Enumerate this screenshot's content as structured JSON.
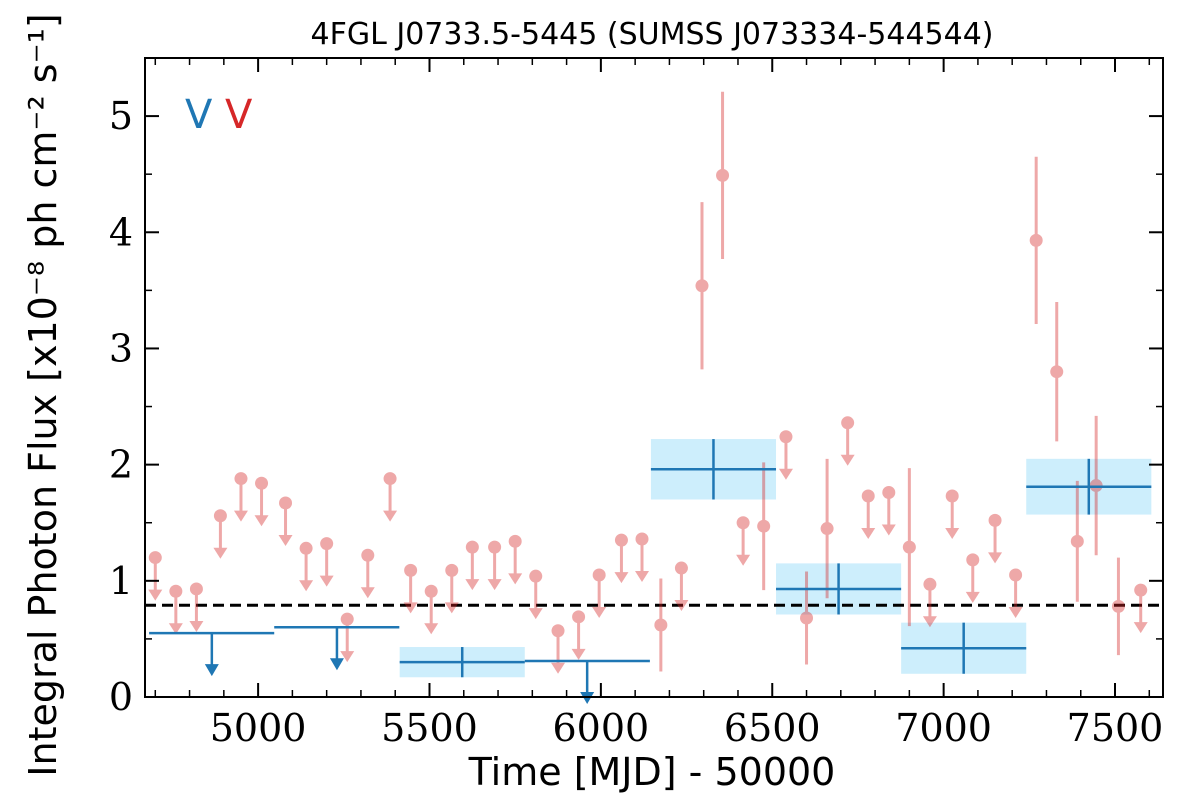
{
  "chart_data": {
    "type": "scatter",
    "title": "4FGL J0733.5-5445 (SUMSS J073334-544544)",
    "xlabel": "Time [MJD] - 50000",
    "ylabel": "Integral Photon Flux [x10⁻⁸ ph cm⁻² s⁻¹]",
    "xlim": [
      4670,
      7640
    ],
    "ylim": [
      0,
      5.5
    ],
    "xticks": [
      5000,
      5500,
      6000,
      6500,
      7000,
      7500
    ],
    "yticks": [
      0,
      1,
      2,
      3,
      4,
      5
    ],
    "grid": false,
    "legend": {
      "position": "top-left",
      "entries": [
        {
          "label": "V",
          "color": "#1f77b4"
        },
        {
          "label": "V",
          "color": "#d62728"
        }
      ]
    },
    "reference_line": {
      "y": 0.79,
      "style": "dashed",
      "color": "#000000"
    },
    "series": [
      {
        "color": "#1f77b4",
        "binned": [
          {
            "x0": 5413,
            "x1": 5778,
            "y": 0.3,
            "yerr": 0.13
          },
          {
            "x0": 6146,
            "x1": 6511,
            "y": 1.96,
            "yerr": 0.26
          },
          {
            "x0": 6511,
            "x1": 6876,
            "y": 0.93,
            "yerr": 0.22
          },
          {
            "x0": 6876,
            "x1": 7241,
            "y": 0.42,
            "yerr": 0.22
          },
          {
            "x0": 7241,
            "x1": 7606,
            "y": 1.81,
            "yerr": 0.24
          }
        ],
        "upper_limits": [
          {
            "x0": 4682,
            "x1": 5047,
            "y": 0.55,
            "arrow_x": 4865
          },
          {
            "x0": 5047,
            "x1": 5412,
            "y": 0.6,
            "arrow_x": 5230
          },
          {
            "x0": 5778,
            "x1": 6143,
            "y": 0.31,
            "arrow_x": 5960
          }
        ]
      },
      {
        "color": "#d62728",
        "points": [
          {
            "x": 6175,
            "y": 0.62,
            "yerr": 0.4
          },
          {
            "x": 6295,
            "y": 3.54,
            "yerr": 0.72
          },
          {
            "x": 6355,
            "y": 4.49,
            "yerr": 0.72
          },
          {
            "x": 6475,
            "y": 1.47,
            "yerr": 0.55
          },
          {
            "x": 6600,
            "y": 0.68,
            "yerr": 0.4
          },
          {
            "x": 6660,
            "y": 1.45,
            "yerr": 0.6
          },
          {
            "x": 6900,
            "y": 1.29,
            "yerr": 0.68
          },
          {
            "x": 7270,
            "y": 3.93,
            "yerr": 0.72
          },
          {
            "x": 7330,
            "y": 2.8,
            "yerr": 0.6
          },
          {
            "x": 7390,
            "y": 1.34,
            "yerr": 0.52
          },
          {
            "x": 7445,
            "y": 1.82,
            "yerr": 0.6
          },
          {
            "x": 7510,
            "y": 0.78,
            "yerr": 0.42
          }
        ],
        "upper_limits": [
          {
            "x": 4700,
            "y": 1.2
          },
          {
            "x": 4760,
            "y": 0.91
          },
          {
            "x": 4820,
            "y": 0.93
          },
          {
            "x": 4890,
            "y": 1.56
          },
          {
            "x": 4950,
            "y": 1.88
          },
          {
            "x": 5010,
            "y": 1.84
          },
          {
            "x": 5080,
            "y": 1.67
          },
          {
            "x": 5140,
            "y": 1.28
          },
          {
            "x": 5200,
            "y": 1.32
          },
          {
            "x": 5260,
            "y": 0.67
          },
          {
            "x": 5320,
            "y": 1.22
          },
          {
            "x": 5385,
            "y": 1.88
          },
          {
            "x": 5445,
            "y": 1.09
          },
          {
            "x": 5505,
            "y": 0.91
          },
          {
            "x": 5565,
            "y": 1.09
          },
          {
            "x": 5625,
            "y": 1.29
          },
          {
            "x": 5690,
            "y": 1.29
          },
          {
            "x": 5750,
            "y": 1.34
          },
          {
            "x": 5810,
            "y": 1.04
          },
          {
            "x": 5875,
            "y": 0.57
          },
          {
            "x": 5935,
            "y": 0.69
          },
          {
            "x": 5995,
            "y": 1.05
          },
          {
            "x": 6060,
            "y": 1.35
          },
          {
            "x": 6120,
            "y": 1.36
          },
          {
            "x": 6235,
            "y": 1.11
          },
          {
            "x": 6415,
            "y": 1.5
          },
          {
            "x": 6540,
            "y": 2.24
          },
          {
            "x": 6720,
            "y": 2.36
          },
          {
            "x": 6780,
            "y": 1.73
          },
          {
            "x": 6840,
            "y": 1.76
          },
          {
            "x": 6960,
            "y": 0.97
          },
          {
            "x": 7025,
            "y": 1.73
          },
          {
            "x": 7085,
            "y": 1.18
          },
          {
            "x": 7150,
            "y": 1.52
          },
          {
            "x": 7210,
            "y": 1.05
          },
          {
            "x": 7575,
            "y": 0.92
          }
        ]
      }
    ]
  }
}
